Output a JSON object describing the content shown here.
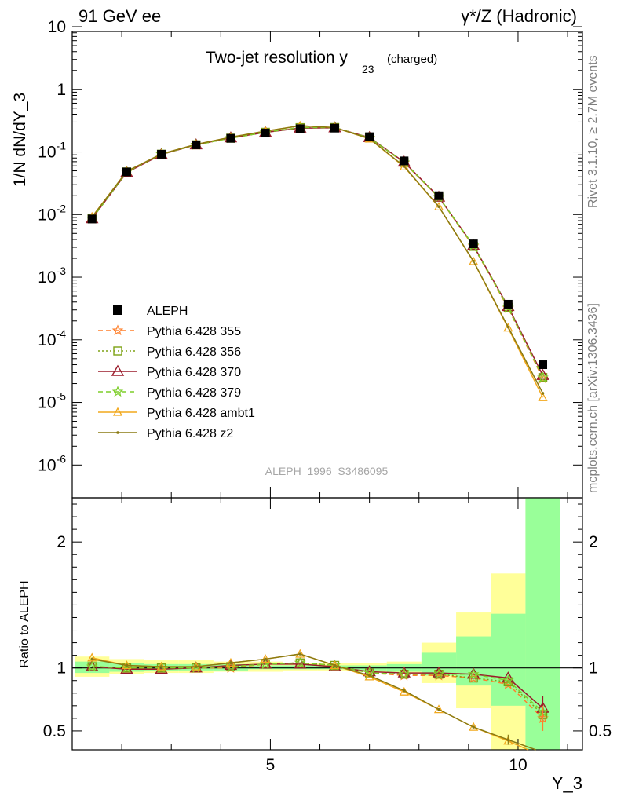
{
  "header": {
    "left": "91 GeV ee",
    "right_sup": "γ*/Z (Hadronic)"
  },
  "side_labels": {
    "rivet": "Rivet 3.1.10, ≥ 2.7M events",
    "mcplots": "mcplots.cern.ch [arXiv:1306.3436]"
  },
  "chart_data": [
    {
      "type": "line",
      "panel": "main",
      "title_main": "Two-jet resolution y",
      "title_sub": "23",
      "title_tail": "(charged)",
      "ylabel": "1/N dN/dY_3",
      "xlabel": "Y_3",
      "yscale": "log",
      "ylim": [
        3e-07,
        20
      ],
      "xlim": [
        1,
        11.3
      ],
      "yticks": [
        "10^-6",
        "10^-5",
        "10^-4",
        "10^-3",
        "10^-2",
        "10^-1",
        "1",
        "10"
      ],
      "watermark": "ALEPH_1996_S3486095",
      "x": [
        1.4,
        2.1,
        2.8,
        3.5,
        4.2,
        4.9,
        5.6,
        6.3,
        7.0,
        7.7,
        8.4,
        9.1,
        9.8,
        10.5
      ],
      "data": {
        "name": "ALEPH",
        "values": [
          0.0085,
          0.048,
          0.092,
          0.13,
          0.165,
          0.2,
          0.235,
          0.24,
          0.175,
          0.072,
          0.02,
          0.0034,
          0.00037,
          4e-05
        ]
      },
      "series": [
        {
          "name": "Pythia 6.428 355",
          "color": "#ff7f2a",
          "dash": "6,4",
          "marker": "star",
          "values": [
            0.0086,
            0.048,
            0.092,
            0.13,
            0.166,
            0.206,
            0.245,
            0.245,
            0.168,
            0.067,
            0.0188,
            0.0031,
            0.00032,
            2.4e-05
          ]
        },
        {
          "name": "Pythia 6.428 356",
          "color": "#7ea215",
          "dash": "2,3",
          "marker": "square",
          "values": [
            0.0086,
            0.048,
            0.092,
            0.13,
            0.166,
            0.206,
            0.244,
            0.245,
            0.168,
            0.068,
            0.019,
            0.0031,
            0.00033,
            2.5e-05
          ]
        },
        {
          "name": "Pythia 6.428 370",
          "color": "#9a1a2a",
          "dash": "",
          "marker": "triangle",
          "values": [
            0.0086,
            0.047,
            0.091,
            0.13,
            0.168,
            0.205,
            0.24,
            0.243,
            0.17,
            0.069,
            0.019,
            0.0032,
            0.00034,
            2.7e-05
          ]
        },
        {
          "name": "Pythia 6.428 379",
          "color": "#7dce2a",
          "dash": "6,4",
          "marker": "star",
          "values": [
            0.0086,
            0.048,
            0.092,
            0.13,
            0.166,
            0.206,
            0.245,
            0.245,
            0.168,
            0.068,
            0.019,
            0.0032,
            0.00033,
            2.5e-05
          ]
        },
        {
          "name": "Pythia 6.428 ambt1",
          "color": "#f2a81c",
          "dash": "",
          "marker": "triangle-small",
          "values": [
            0.0092,
            0.049,
            0.093,
            0.132,
            0.172,
            0.215,
            0.262,
            0.245,
            0.162,
            0.058,
            0.0133,
            0.00178,
            0.000155,
            1.2e-05
          ]
        },
        {
          "name": "Pythia 6.428 z2",
          "color": "#8a7a12",
          "dash": "",
          "marker": "dot",
          "values": [
            0.0091,
            0.049,
            0.093,
            0.132,
            0.172,
            0.215,
            0.262,
            0.245,
            0.163,
            0.059,
            0.0134,
            0.0018,
            0.00016,
            1.4e-05
          ]
        }
      ]
    },
    {
      "type": "line",
      "panel": "ratio",
      "ylabel": "Ratio to ALEPH",
      "xlabel": "Y_3",
      "ylim": [
        0.35,
        2.35
      ],
      "xlim": [
        1,
        11.3
      ],
      "yticks": [
        "0.5",
        "1",
        "2"
      ],
      "xticks": [
        "5",
        "10"
      ],
      "x": [
        1.4,
        2.1,
        2.8,
        3.5,
        4.2,
        4.9,
        5.6,
        6.3,
        7.0,
        7.7,
        8.4,
        9.1,
        9.8,
        10.5
      ],
      "band_yellow": [
        [
          0.93,
          1.09
        ],
        [
          0.95,
          1.07
        ],
        [
          0.96,
          1.06
        ],
        [
          0.96,
          1.06
        ],
        [
          0.97,
          1.05
        ],
        [
          0.97,
          1.05
        ],
        [
          0.98,
          1.04
        ],
        [
          0.98,
          1.04
        ],
        [
          0.97,
          1.04
        ],
        [
          0.96,
          1.05
        ],
        [
          0.88,
          1.2
        ],
        [
          0.68,
          1.44
        ],
        [
          0.35,
          1.75
        ],
        [
          0.35,
          2.35
        ]
      ],
      "band_green": [
        [
          0.96,
          1.05
        ],
        [
          0.97,
          1.04
        ],
        [
          0.98,
          1.03
        ],
        [
          0.98,
          1.03
        ],
        [
          0.98,
          1.03
        ],
        [
          0.99,
          1.02
        ],
        [
          0.99,
          1.02
        ],
        [
          0.99,
          1.02
        ],
        [
          0.98,
          1.02
        ],
        [
          0.97,
          1.03
        ],
        [
          0.94,
          1.12
        ],
        [
          0.86,
          1.25
        ],
        [
          0.7,
          1.43
        ],
        [
          0.35,
          2.35
        ]
      ],
      "ratios": [
        [
          1.01,
          1.0,
          1.0,
          1.0,
          1.0,
          1.03,
          1.04,
          1.02,
          0.96,
          0.94,
          0.94,
          0.92,
          0.87,
          0.6
        ],
        [
          1.01,
          1.0,
          1.0,
          1.0,
          1.01,
          1.03,
          1.04,
          1.02,
          0.96,
          0.95,
          0.95,
          0.92,
          0.89,
          0.63
        ],
        [
          1.01,
          0.99,
          0.99,
          1.0,
          1.02,
          1.03,
          1.03,
          1.01,
          0.97,
          0.96,
          0.96,
          0.95,
          0.92,
          0.68
        ],
        [
          1.01,
          1.0,
          1.0,
          1.0,
          1.01,
          1.03,
          1.04,
          1.02,
          0.96,
          0.95,
          0.95,
          0.95,
          0.9,
          0.65
        ],
        [
          1.08,
          1.02,
          1.01,
          1.01,
          1.04,
          1.07,
          1.11,
          1.02,
          0.93,
          0.81,
          0.67,
          0.53,
          0.42,
          0.3
        ],
        [
          1.07,
          1.02,
          1.01,
          1.01,
          1.04,
          1.07,
          1.11,
          1.02,
          0.94,
          0.82,
          0.67,
          0.53,
          0.43,
          0.33
        ]
      ]
    }
  ]
}
